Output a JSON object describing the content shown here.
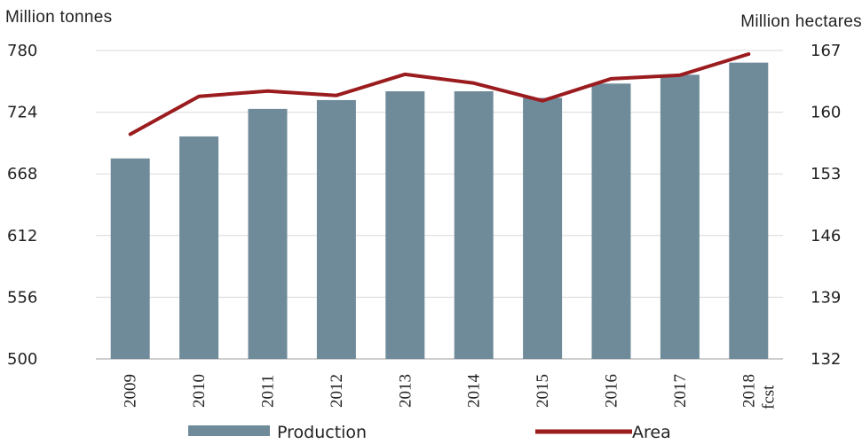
{
  "chart_data": {
    "type": "bar",
    "left_axis_title": "Million tonnes",
    "right_axis_title": "Million hectares",
    "categories": [
      "2009",
      "2010",
      "2011",
      "2012",
      "2013",
      "2014",
      "2015",
      "2016",
      "2017",
      "2018"
    ],
    "category_suffix": {
      "2018": "fcst"
    },
    "left_axis": {
      "ylim": [
        500,
        780
      ],
      "ticks": [
        "500",
        "556",
        "612",
        "668",
        "724",
        "780"
      ]
    },
    "right_axis": {
      "ylim": [
        132,
        167
      ],
      "ticks": [
        "132",
        "139",
        "146",
        "153",
        "160",
        "167"
      ]
    },
    "series": [
      {
        "name": "Production",
        "type": "bar",
        "axis": "left",
        "values": [
          682,
          702,
          727,
          735,
          743,
          743,
          737,
          750,
          758,
          769
        ]
      },
      {
        "name": "Area",
        "type": "line",
        "axis": "right",
        "values": [
          157.5,
          161.8,
          162.4,
          161.9,
          164.3,
          163.3,
          161.3,
          163.8,
          164.2,
          166.6
        ]
      }
    ],
    "colors": {
      "bar": "#6f8b9a",
      "line": "#9b1c1f",
      "gridline": "#d9d9d9"
    },
    "grid": true,
    "legend_position": "bottom"
  }
}
